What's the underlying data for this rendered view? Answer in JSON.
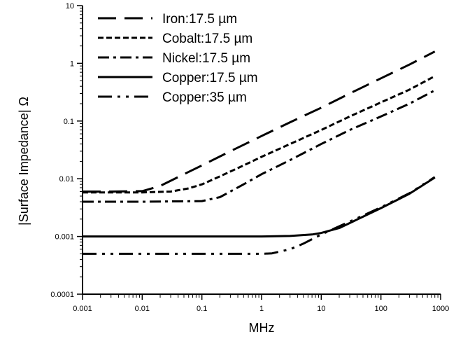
{
  "chart_data": {
    "type": "line",
    "title": "",
    "xlabel": "MHz",
    "ylabel": "|Surface Impedance| Ω",
    "xscale": "log",
    "yscale": "log",
    "xlim": [
      0.001,
      1000
    ],
    "ylim": [
      0.0001,
      10
    ],
    "xticks": [
      0.001,
      0.01,
      0.1,
      1,
      10,
      100,
      1000
    ],
    "xtick_labels": [
      "0.001",
      "0.01",
      "0.1",
      "1",
      "10",
      "100",
      "1000"
    ],
    "yticks": [
      0.0001,
      0.001,
      0.01,
      0.1,
      1,
      10
    ],
    "ytick_labels": [
      "0.0001",
      "0.001",
      "0.01",
      "0.1",
      "1",
      "10"
    ],
    "grid": false,
    "legend_position": "top-left",
    "series": [
      {
        "name": "Iron:17.5 µm",
        "style": "long-dash",
        "x": [
          0.001,
          0.003,
          0.01,
          0.02,
          0.05,
          0.1,
          0.3,
          1,
          3,
          10,
          30,
          100,
          300,
          800
        ],
        "y": [
          0.006,
          0.006,
          0.0061,
          0.0075,
          0.012,
          0.017,
          0.03,
          0.055,
          0.095,
          0.17,
          0.3,
          0.55,
          0.95,
          1.6
        ]
      },
      {
        "name": "Cobalt:17.5 µm",
        "style": "short-dash",
        "x": [
          0.001,
          0.01,
          0.03,
          0.06,
          0.1,
          0.2,
          0.5,
          1,
          3,
          10,
          30,
          100,
          300,
          800
        ],
        "y": [
          0.0058,
          0.0058,
          0.006,
          0.0068,
          0.008,
          0.011,
          0.017,
          0.024,
          0.04,
          0.07,
          0.12,
          0.21,
          0.35,
          0.6
        ]
      },
      {
        "name": "Nickel:17.5 µm",
        "style": "dash-dot",
        "x": [
          0.001,
          0.01,
          0.1,
          0.2,
          0.5,
          1,
          3,
          10,
          30,
          100,
          300,
          800
        ],
        "y": [
          0.004,
          0.004,
          0.0041,
          0.0048,
          0.008,
          0.012,
          0.021,
          0.04,
          0.07,
          0.12,
          0.2,
          0.34
        ]
      },
      {
        "name": "Copper:17.5 µm",
        "style": "solid",
        "x": [
          0.001,
          0.01,
          0.1,
          1,
          3,
          7,
          10,
          20,
          50,
          100,
          300,
          800
        ],
        "y": [
          0.001,
          0.001,
          0.001,
          0.001,
          0.00102,
          0.00108,
          0.00115,
          0.0014,
          0.0022,
          0.0031,
          0.0055,
          0.0105
        ]
      },
      {
        "name": "Copper:35 µm",
        "style": "dash-dot-dot",
        "x": [
          0.001,
          0.01,
          0.1,
          1,
          1.5,
          3,
          5,
          10,
          20,
          50,
          100,
          300,
          800
        ],
        "y": [
          0.0005,
          0.0005,
          0.0005,
          0.0005,
          0.00051,
          0.0006,
          0.00075,
          0.00108,
          0.0015,
          0.0023,
          0.0032,
          0.0056,
          0.0107
        ]
      }
    ]
  }
}
